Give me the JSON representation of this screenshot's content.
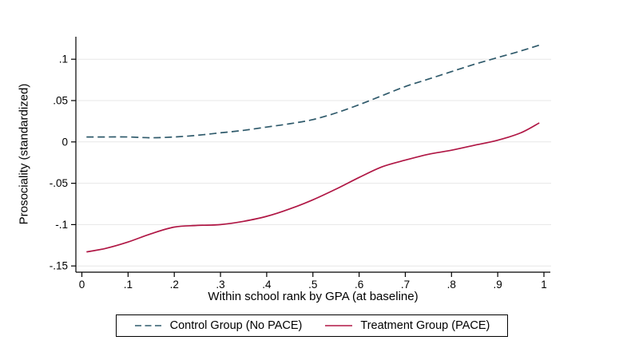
{
  "colors": {
    "control_line": "#2f5a6b",
    "treatment_line": "#b01745",
    "gridline": "#e7e7e7",
    "axis": "#000000",
    "background": "#ffffff"
  },
  "y_axis": {
    "title": "Prosociality (standardized)",
    "ticks": [
      {
        "value": 0.1,
        "label": ".1"
      },
      {
        "value": 0.05,
        "label": ".05"
      },
      {
        "value": 0,
        "label": "0"
      },
      {
        "value": -0.05,
        "label": "-.05"
      },
      {
        "value": -0.1,
        "label": "-.1"
      },
      {
        "value": -0.15,
        "label": "-.15"
      }
    ]
  },
  "x_axis": {
    "title": "Within school rank by GPA (at baseline)",
    "ticks": [
      {
        "value": 0,
        "label": "0"
      },
      {
        "value": 0.1,
        "label": ".1"
      },
      {
        "value": 0.2,
        "label": ".2"
      },
      {
        "value": 0.3,
        "label": ".3"
      },
      {
        "value": 0.4,
        "label": ".4"
      },
      {
        "value": 0.5,
        "label": ".5"
      },
      {
        "value": 0.6,
        "label": ".6"
      },
      {
        "value": 0.7,
        "label": ".7"
      },
      {
        "value": 0.8,
        "label": ".8"
      },
      {
        "value": 0.9,
        "label": ".9"
      },
      {
        "value": 1,
        "label": "1"
      }
    ]
  },
  "chart_data": {
    "type": "line",
    "title": "",
    "xlabel": "Within school rank by GPA (at baseline)",
    "ylabel": "Prosociality (standardized)",
    "xlim": [
      0,
      1
    ],
    "ylim": [
      -0.15,
      0.1
    ],
    "grid": "horizontal-only",
    "legend_position": "bottom-center-boxed",
    "x": [
      0.01,
      0.05,
      0.1,
      0.15,
      0.2,
      0.25,
      0.3,
      0.35,
      0.4,
      0.45,
      0.5,
      0.55,
      0.6,
      0.65,
      0.7,
      0.75,
      0.8,
      0.85,
      0.9,
      0.95,
      0.99
    ],
    "series": [
      {
        "name": "Control Group (No PACE)",
        "style": "dashed",
        "color": "#2f5a6b",
        "values": [
          0.006,
          0.006,
          0.006,
          0.005,
          0.006,
          0.008,
          0.011,
          0.014,
          0.018,
          0.022,
          0.027,
          0.035,
          0.045,
          0.056,
          0.067,
          0.076,
          0.085,
          0.094,
          0.102,
          0.11,
          0.117
        ]
      },
      {
        "name": "Treatment Group (PACE)",
        "style": "solid",
        "color": "#b01745",
        "values": [
          -0.133,
          -0.129,
          -0.121,
          -0.111,
          -0.103,
          -0.101,
          -0.1,
          -0.096,
          -0.09,
          -0.081,
          -0.07,
          -0.057,
          -0.043,
          -0.03,
          -0.022,
          -0.015,
          -0.01,
          -0.004,
          0.002,
          0.011,
          0.023
        ]
      }
    ]
  }
}
